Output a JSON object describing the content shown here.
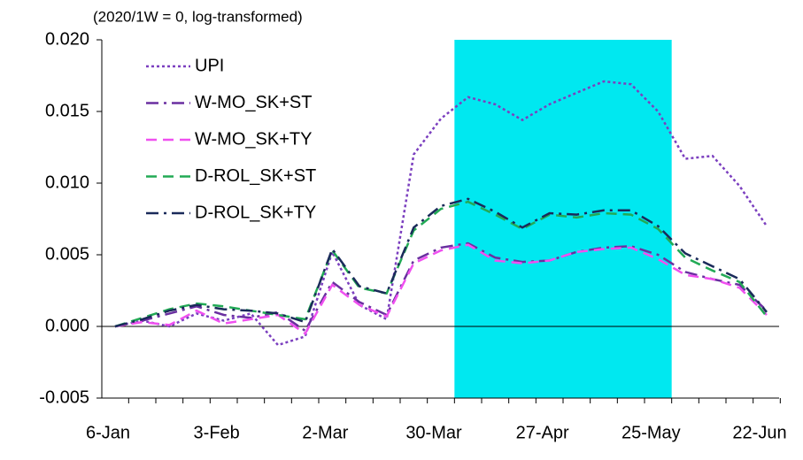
{
  "chart_data": {
    "type": "line",
    "subtitle": "(2020/1W = 0, log-transformed)",
    "categories": [
      "6-Jan",
      null,
      null,
      null,
      "3-Feb",
      null,
      null,
      null,
      "2-Mar",
      null,
      null,
      null,
      "30-Mar",
      null,
      null,
      null,
      "27-Apr",
      null,
      null,
      null,
      "25-May",
      null,
      null,
      null,
      "22-Jun"
    ],
    "ylim": [
      -0.005,
      0.02
    ],
    "yticks": [
      -0.005,
      {
        "value": 0,
        "label": "0.000"
      },
      0.005,
      {
        "value": 0.01,
        "label": "0.010"
      },
      0.015,
      {
        "value": 0.02,
        "label": "0.020"
      }
    ],
    "highlight": {
      "start": 13,
      "end": 20,
      "color": "#00e8f0"
    },
    "legend": "upper left",
    "series": [
      {
        "name": "UPI",
        "color": "#7b3fbf",
        "dash": "dotted",
        "values": [
          0,
          0.0004,
          0.0,
          0.0009,
          0.0004,
          0.0009,
          -0.0013,
          -0.0007,
          0.0052,
          0.0015,
          0.0005,
          0.012,
          0.0145,
          0.016,
          0.0155,
          0.0144,
          0.0155,
          0.0163,
          0.0171,
          0.0169,
          0.015,
          0.0117,
          0.0119,
          0.0098,
          0.007
        ]
      },
      {
        "name": "W-MO_SK+ST",
        "color": "#6a2fa0",
        "dash": "dashdot",
        "values": [
          0,
          0.0004,
          0.0009,
          0.0014,
          0.0008,
          0.0006,
          0.001,
          -0.0003,
          0.0031,
          0.0017,
          0.0008,
          0.0046,
          0.0055,
          0.0058,
          0.0048,
          0.0045,
          0.0046,
          0.0052,
          0.0055,
          0.0056,
          0.005,
          0.0038,
          0.0033,
          0.0029,
          0.0011
        ]
      },
      {
        "name": "W-MO_SK+TY",
        "color": "#f050f0",
        "dash": "dashed",
        "values": [
          0,
          0.0003,
          0.0001,
          0.0011,
          0.0002,
          0.0005,
          0.0008,
          -0.0005,
          0.0029,
          0.0015,
          0.0007,
          0.0044,
          0.0053,
          0.0057,
          0.0046,
          0.0044,
          0.0046,
          0.0052,
          0.0054,
          0.0055,
          0.0047,
          0.0036,
          0.0033,
          0.0027,
          0.0008
        ]
      },
      {
        "name": "D-ROL_SK+ST",
        "color": "#22aa55",
        "dash": "dashed",
        "values": [
          0,
          0.0006,
          0.0012,
          0.0016,
          0.0014,
          0.0011,
          0.0008,
          0.0005,
          0.0053,
          0.0027,
          0.0023,
          0.0067,
          0.0082,
          0.0087,
          0.0078,
          0.0068,
          0.0078,
          0.0076,
          0.0079,
          0.0078,
          0.0068,
          0.0048,
          0.0039,
          0.0031,
          0.0007
        ]
      },
      {
        "name": "D-ROL_SK+TY",
        "color": "#1a2a5a",
        "dash": "dashdot",
        "values": [
          0,
          0.0005,
          0.0011,
          0.0015,
          0.0012,
          0.0011,
          0.0009,
          0.0003,
          0.0054,
          0.0028,
          0.0023,
          0.0069,
          0.0084,
          0.0089,
          0.008,
          0.0069,
          0.0079,
          0.0078,
          0.0081,
          0.0081,
          0.007,
          0.0051,
          0.0042,
          0.0033,
          0.001
        ]
      }
    ]
  }
}
